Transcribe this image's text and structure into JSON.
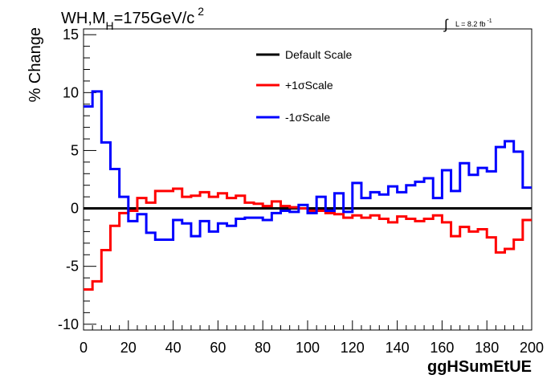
{
  "chart_data": {
    "type": "line",
    "title": {
      "prefix": "WH,M",
      "sub": "H",
      "main": "=175GeV/c",
      "sup": "2"
    },
    "lumi": {
      "text": "L = 8.2 fb",
      "sup": "-1"
    },
    "xlabel": "ggHSumEtUE",
    "ylabel": "% Change",
    "xlim": [
      0,
      200
    ],
    "ylim": [
      -10.5,
      15.5
    ],
    "xticks": [
      0,
      20,
      40,
      60,
      80,
      100,
      120,
      140,
      160,
      180,
      200
    ],
    "yticks": [
      -10,
      -5,
      0,
      5,
      10,
      15
    ],
    "legend_position": "top-center",
    "bin_edges": [
      0,
      4,
      8,
      12,
      16,
      20,
      24,
      28,
      32,
      36,
      40,
      44,
      48,
      52,
      56,
      60,
      64,
      68,
      72,
      76,
      80,
      84,
      88,
      92,
      96,
      100,
      104,
      108,
      112,
      116,
      120,
      124,
      128,
      132,
      136,
      140,
      144,
      148,
      152,
      156,
      160,
      164,
      168,
      172,
      176,
      180,
      184,
      188,
      192,
      196,
      200
    ],
    "series": [
      {
        "name": "Default Scale",
        "color": "#000000",
        "values": [
          0,
          0,
          0,
          0,
          0,
          0,
          0,
          0,
          0,
          0,
          0,
          0,
          0,
          0,
          0,
          0,
          0,
          0,
          0,
          0,
          0,
          0,
          0,
          0,
          0,
          0,
          0,
          0,
          0,
          0,
          0,
          0,
          0,
          0,
          0,
          0,
          0,
          0,
          0,
          0,
          0,
          0,
          0,
          0,
          0,
          0,
          0,
          0,
          0,
          0
        ]
      },
      {
        "name": "+1σScale",
        "color": "#ff0000",
        "values": [
          -7.0,
          -6.3,
          -3.6,
          -1.5,
          -0.4,
          -0.2,
          0.9,
          0.5,
          1.5,
          1.5,
          1.7,
          1.0,
          1.1,
          1.4,
          1.0,
          1.3,
          0.9,
          1.1,
          0.5,
          0.4,
          0.2,
          0.6,
          0.2,
          0.1,
          0.0,
          -0.2,
          -0.2,
          -0.4,
          -0.5,
          -0.8,
          -0.6,
          -0.8,
          -0.6,
          -0.9,
          -1.2,
          -0.7,
          -0.9,
          -1.1,
          -0.9,
          -0.6,
          -1.2,
          -2.4,
          -1.6,
          -2.0,
          -1.8,
          -2.5,
          -3.8,
          -3.5,
          -2.7,
          -1.0
        ]
      },
      {
        "name": "-1σScale",
        "color": "#0000ff",
        "values": [
          8.8,
          10.1,
          5.7,
          3.4,
          1.0,
          -1.1,
          -0.5,
          -2.1,
          -2.7,
          -2.7,
          -1.0,
          -1.3,
          -2.4,
          -1.1,
          -2.0,
          -1.3,
          -1.5,
          -0.9,
          -0.8,
          -0.8,
          -1.0,
          -0.4,
          -0.2,
          -0.3,
          0.3,
          -0.4,
          1.0,
          -0.2,
          1.3,
          -0.3,
          2.2,
          0.9,
          1.4,
          1.2,
          1.9,
          1.4,
          2.0,
          2.3,
          2.6,
          0.9,
          3.3,
          1.5,
          3.9,
          2.9,
          3.5,
          3.2,
          5.3,
          5.8,
          4.9,
          1.8
        ]
      }
    ]
  }
}
